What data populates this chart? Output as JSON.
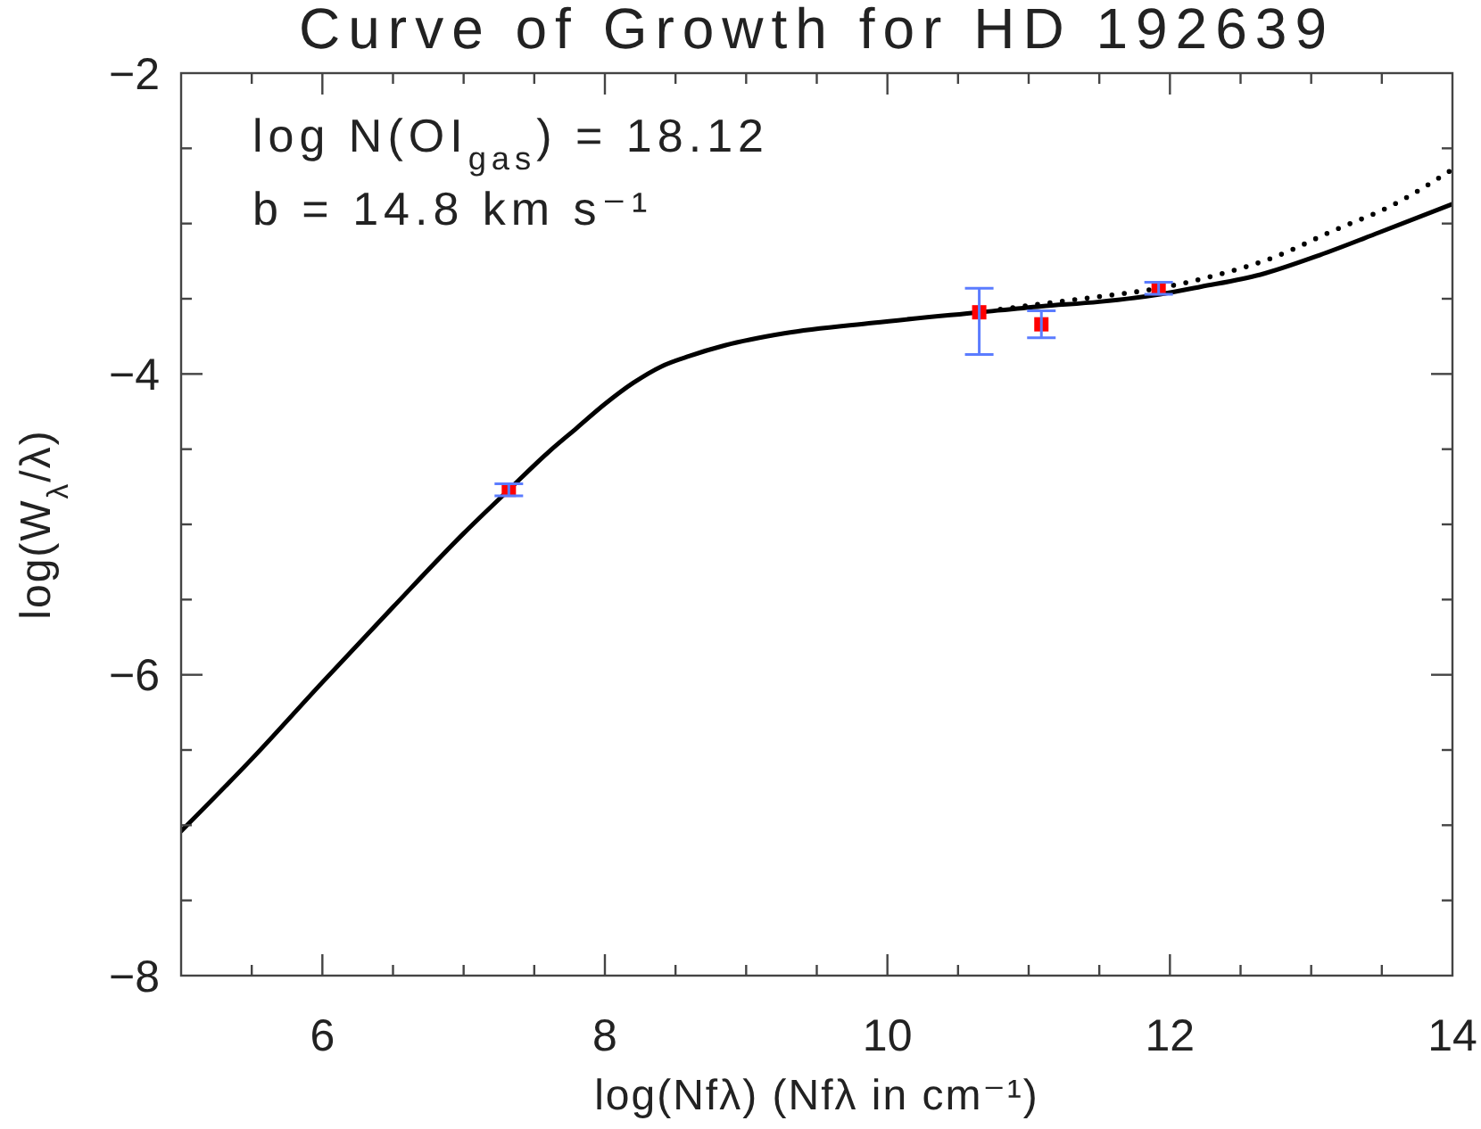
{
  "chart_data": {
    "type": "line",
    "title": "Curve of Growth for HD 192639",
    "xlabel": "log(Nfλ) (Nfλ in cm⁻¹)",
    "ylabel": "log(W$_{λ}$/λ)",
    "annotations": [
      "log N(OI$_{gas}$) = 18.12",
      "b = 14.8 km s⁻¹"
    ],
    "xlim": [
      5,
      14
    ],
    "ylim": [
      -8,
      -2
    ],
    "xticks": [
      {
        "value": 5.5,
        "label": null
      },
      6,
      {
        "value": 6.5,
        "label": null
      },
      {
        "value": 7,
        "label": null
      },
      {
        "value": 7.5,
        "label": null
      },
      8,
      {
        "value": 8.5,
        "label": null
      },
      {
        "value": 9,
        "label": null
      },
      {
        "value": 9.5,
        "label": null
      },
      10,
      {
        "value": 10.5,
        "label": null
      },
      {
        "value": 11,
        "label": null
      },
      {
        "value": 11.5,
        "label": null
      },
      12,
      {
        "value": 12.5,
        "label": null
      },
      {
        "value": 13,
        "label": null
      },
      {
        "value": 13.5,
        "label": null
      },
      14
    ],
    "yticks": [
      -8,
      {
        "value": -7.5,
        "label": null
      },
      {
        "value": -7,
        "label": null
      },
      {
        "value": -6.5,
        "label": null
      },
      -6,
      {
        "value": -5.5,
        "label": null
      },
      {
        "value": -5,
        "label": null
      },
      {
        "value": -4.5,
        "label": null
      },
      -4,
      {
        "value": -3.5,
        "label": null
      },
      {
        "value": -3,
        "label": null
      },
      {
        "value": -2.5,
        "label": null
      },
      -2
    ],
    "series": [
      {
        "color": "#000000",
        "line_style": "solid",
        "x": [
          5,
          5.5,
          6,
          6.5,
          7,
          7.32,
          7.6,
          7.8,
          8,
          8.2,
          8.4,
          8.6,
          8.85,
          9.27,
          9.9,
          10.65,
          11.09,
          11.5,
          11.93,
          12.22,
          12.64,
          13.06,
          13.48,
          14
        ],
        "values": [
          -7.04,
          -6.56,
          -6.05,
          -5.55,
          -5.06,
          -4.77,
          -4.52,
          -4.36,
          -4.2,
          -4.06,
          -3.95,
          -3.88,
          -3.81,
          -3.73,
          -3.66,
          -3.59,
          -3.55,
          -3.52,
          -3.47,
          -3.42,
          -3.34,
          -3.21,
          -3.06,
          -2.87
        ]
      },
      {
        "color": "#000000",
        "line_style": "dotted",
        "x": [
          10.8,
          11.04,
          11.46,
          11.92,
          12.3,
          12.72,
          13.15,
          13.57,
          14
        ],
        "values": [
          -3.57,
          -3.54,
          -3.49,
          -3.43,
          -3.35,
          -3.23,
          -3.05,
          -2.88,
          -2.64
        ]
      },
      {
        "type": "scatter",
        "color": "#ff0000",
        "marker": "square",
        "x": [
          7.32,
          10.65,
          11.09,
          11.92
        ],
        "values": [
          -4.77,
          -3.59,
          -3.67,
          -3.43
        ],
        "errors": [
          0.04,
          [
            -3.87,
            -3.43
          ],
          0.09,
          0.04
        ]
      }
    ]
  }
}
